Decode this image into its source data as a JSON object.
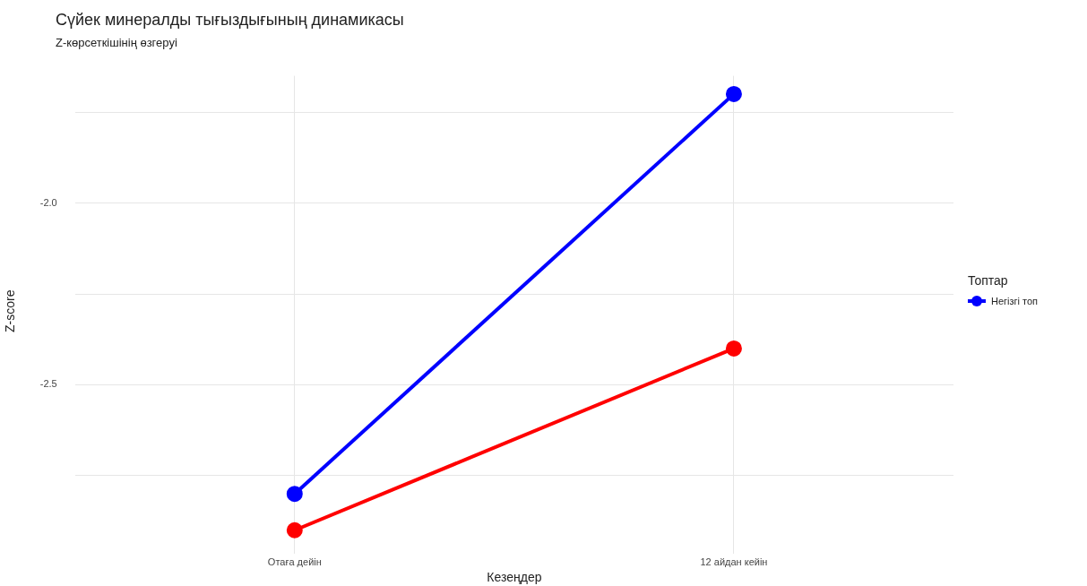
{
  "chart_data": {
    "type": "line",
    "title": "Сүйек минералды тығыздығының динамикасы",
    "subtitle": "Z-көрсеткішінің өзгеруі",
    "xlabel": "Кезеңдер",
    "ylabel": "Z-score",
    "legend_title": "Топтар",
    "categories": [
      "Отаға дейін",
      "12 айдан кейін"
    ],
    "series": [
      {
        "color": "#ff0000",
        "values": [
          -2.9,
          -2.4
        ]
      },
      {
        "name": "Негізгі топ",
        "color": "#0000ff",
        "values": [
          -2.8,
          -1.7
        ]
      }
    ],
    "ylim": [
      -2.945,
      -1.65
    ],
    "yticks": [
      {
        "value": -2.75,
        "label": null
      },
      {
        "value": -2.5,
        "label": "-2.5"
      },
      {
        "value": -2.25,
        "label": null
      },
      {
        "value": -2.0,
        "label": "-2.0"
      },
      {
        "value": -1.75,
        "label": null
      }
    ],
    "grid": true,
    "legend": "right",
    "marker": "circle",
    "line_style": "solid"
  }
}
